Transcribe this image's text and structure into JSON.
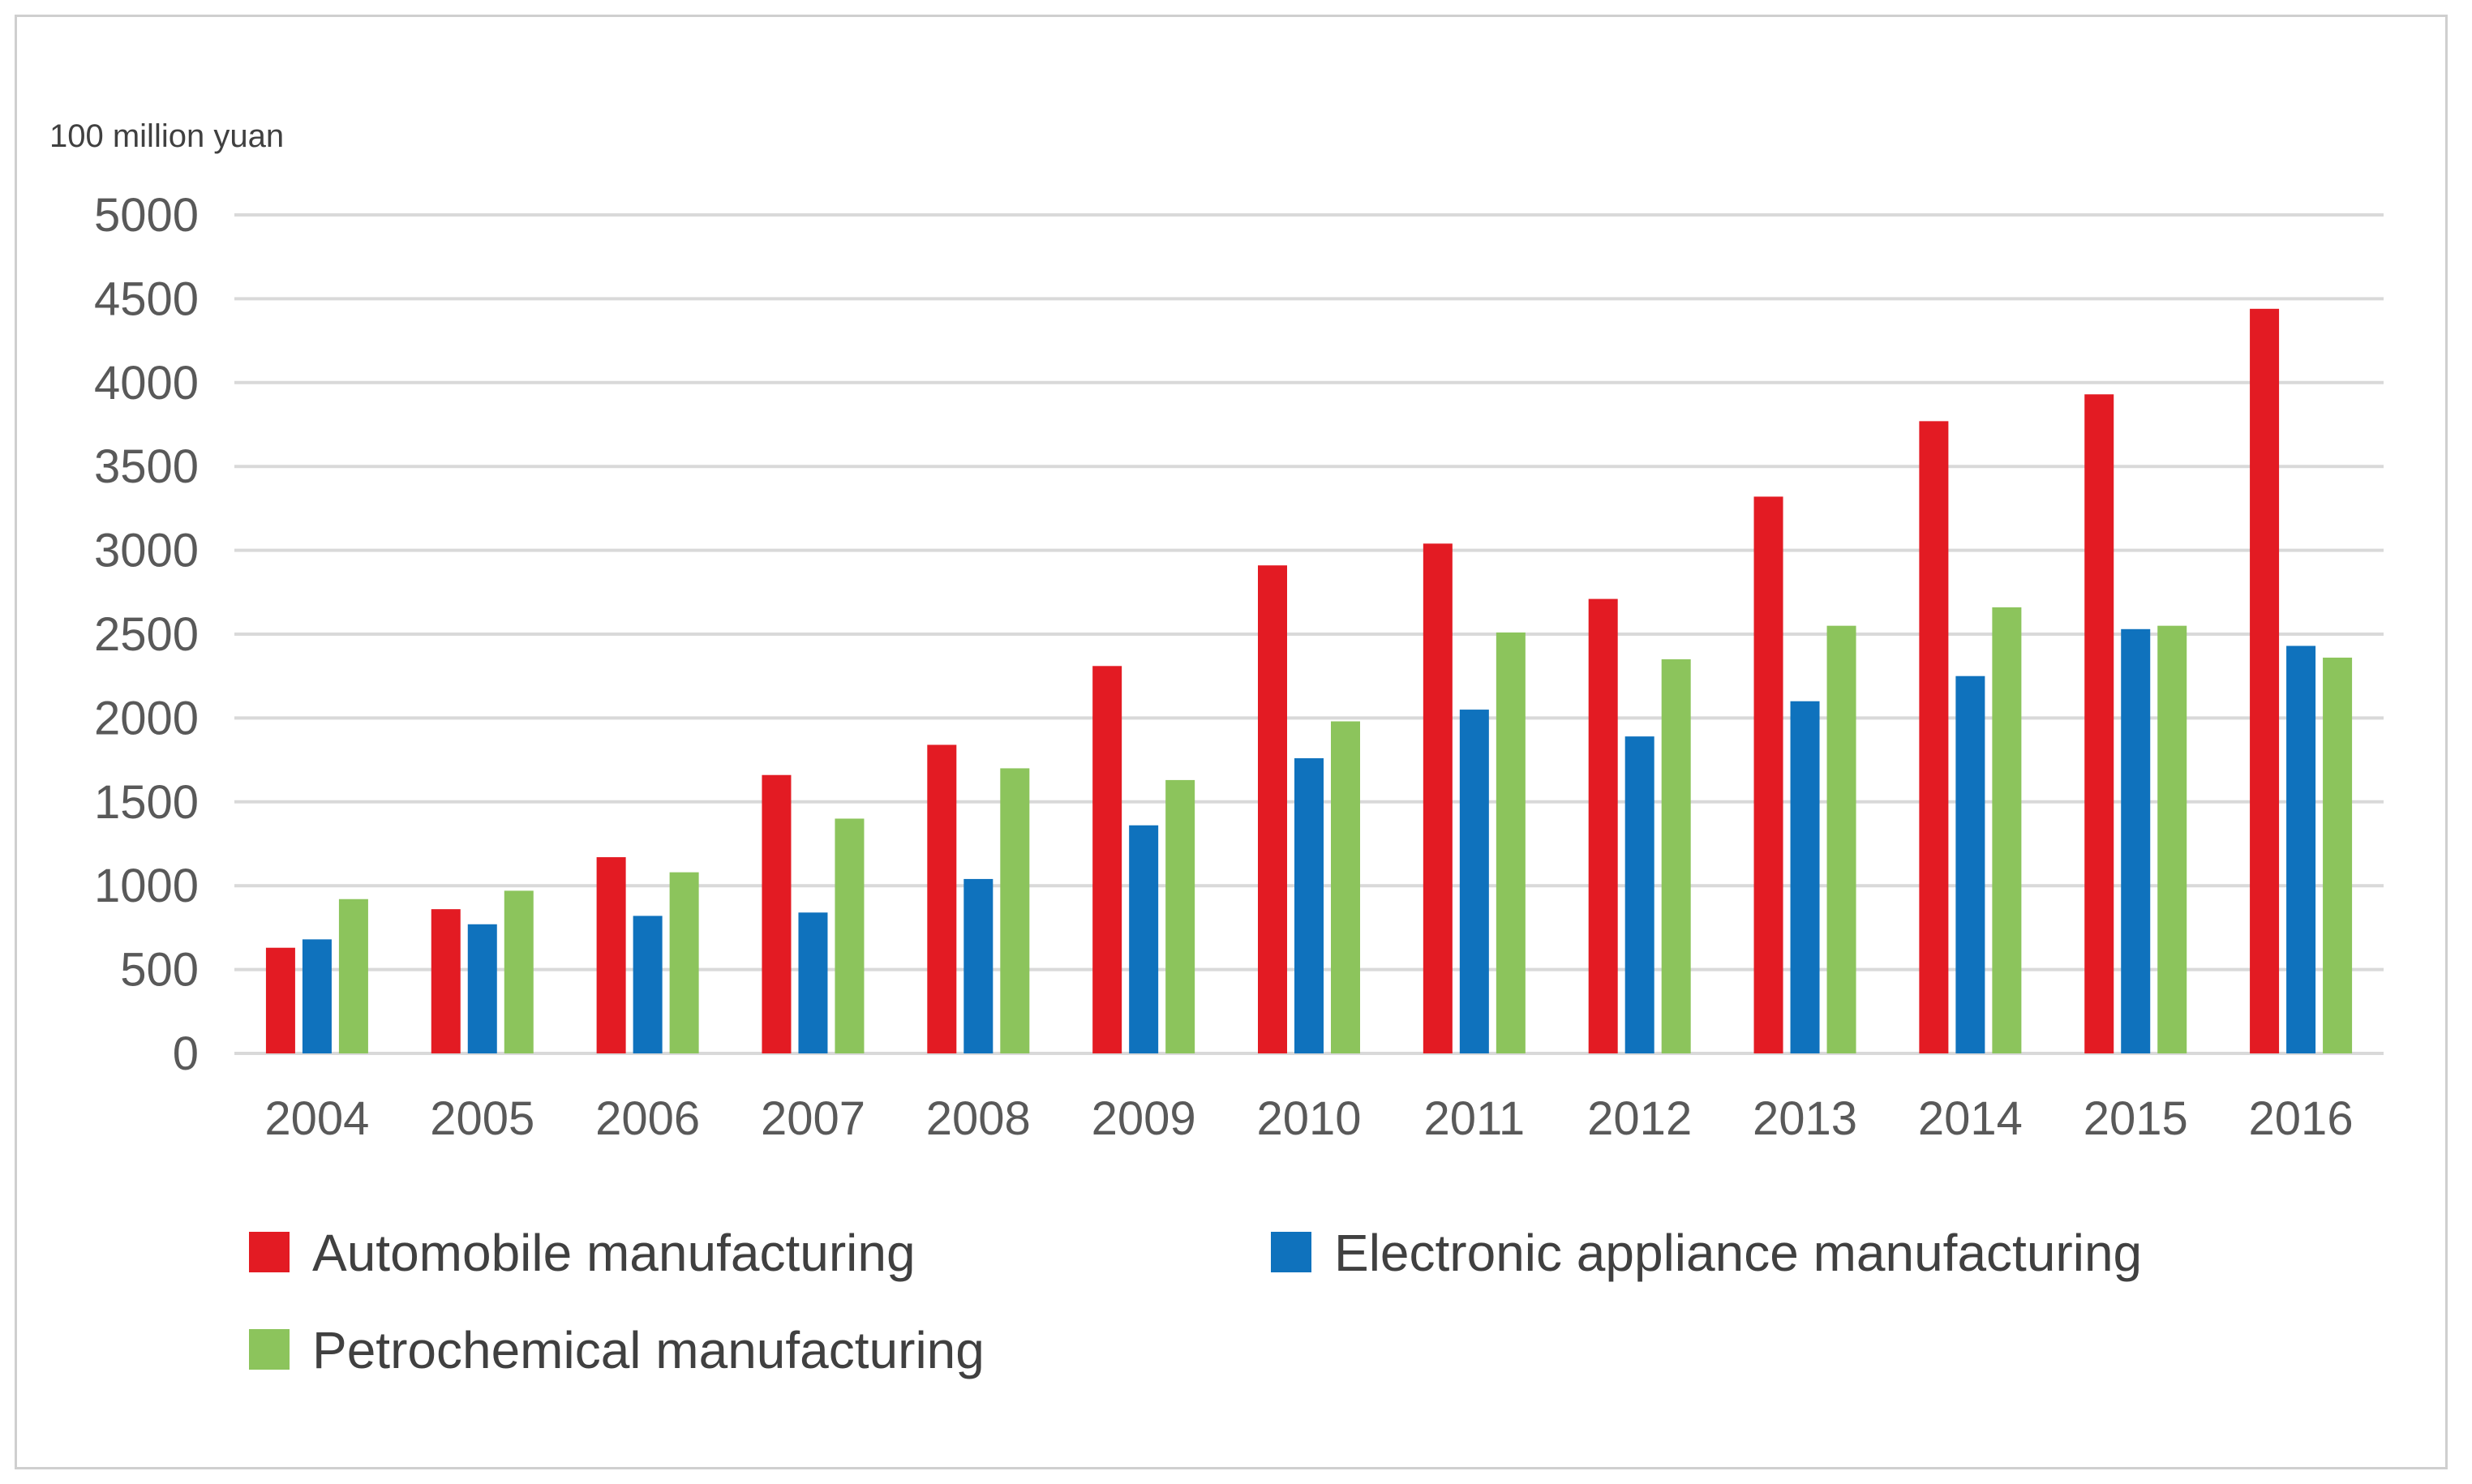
{
  "chart_data": {
    "type": "bar",
    "title": "",
    "unit_label": "100 million yuan",
    "xlabel": "",
    "ylabel": "100 million yuan",
    "ylim": [
      0,
      5000
    ],
    "yticks": [
      0,
      500,
      1000,
      1500,
      2000,
      2500,
      3000,
      3500,
      4000,
      4500,
      5000
    ],
    "grid": true,
    "legend_position": "bottom",
    "categories": [
      "2004",
      "2005",
      "2006",
      "2007",
      "2008",
      "2009",
      "2010",
      "2011",
      "2012",
      "2013",
      "2014",
      "2015",
      "2016"
    ],
    "series": [
      {
        "name": "Automobile manufacturing",
        "color": "#E31B23",
        "values": [
          630,
          860,
          1170,
          1660,
          1840,
          2310,
          2910,
          3040,
          2710,
          3320,
          3770,
          3930,
          4440
        ]
      },
      {
        "name": "Electronic appliance manufacturing",
        "color": "#0F72BD",
        "values": [
          680,
          770,
          820,
          840,
          1040,
          1360,
          1760,
          2050,
          1890,
          2100,
          2250,
          2530,
          2430
        ]
      },
      {
        "name": "Petrochemical manufacturing",
        "color": "#8CC45C",
        "values": [
          920,
          970,
          1080,
          1400,
          1700,
          1630,
          1980,
          2510,
          2350,
          2550,
          2660,
          2550,
          2360
        ]
      }
    ]
  }
}
